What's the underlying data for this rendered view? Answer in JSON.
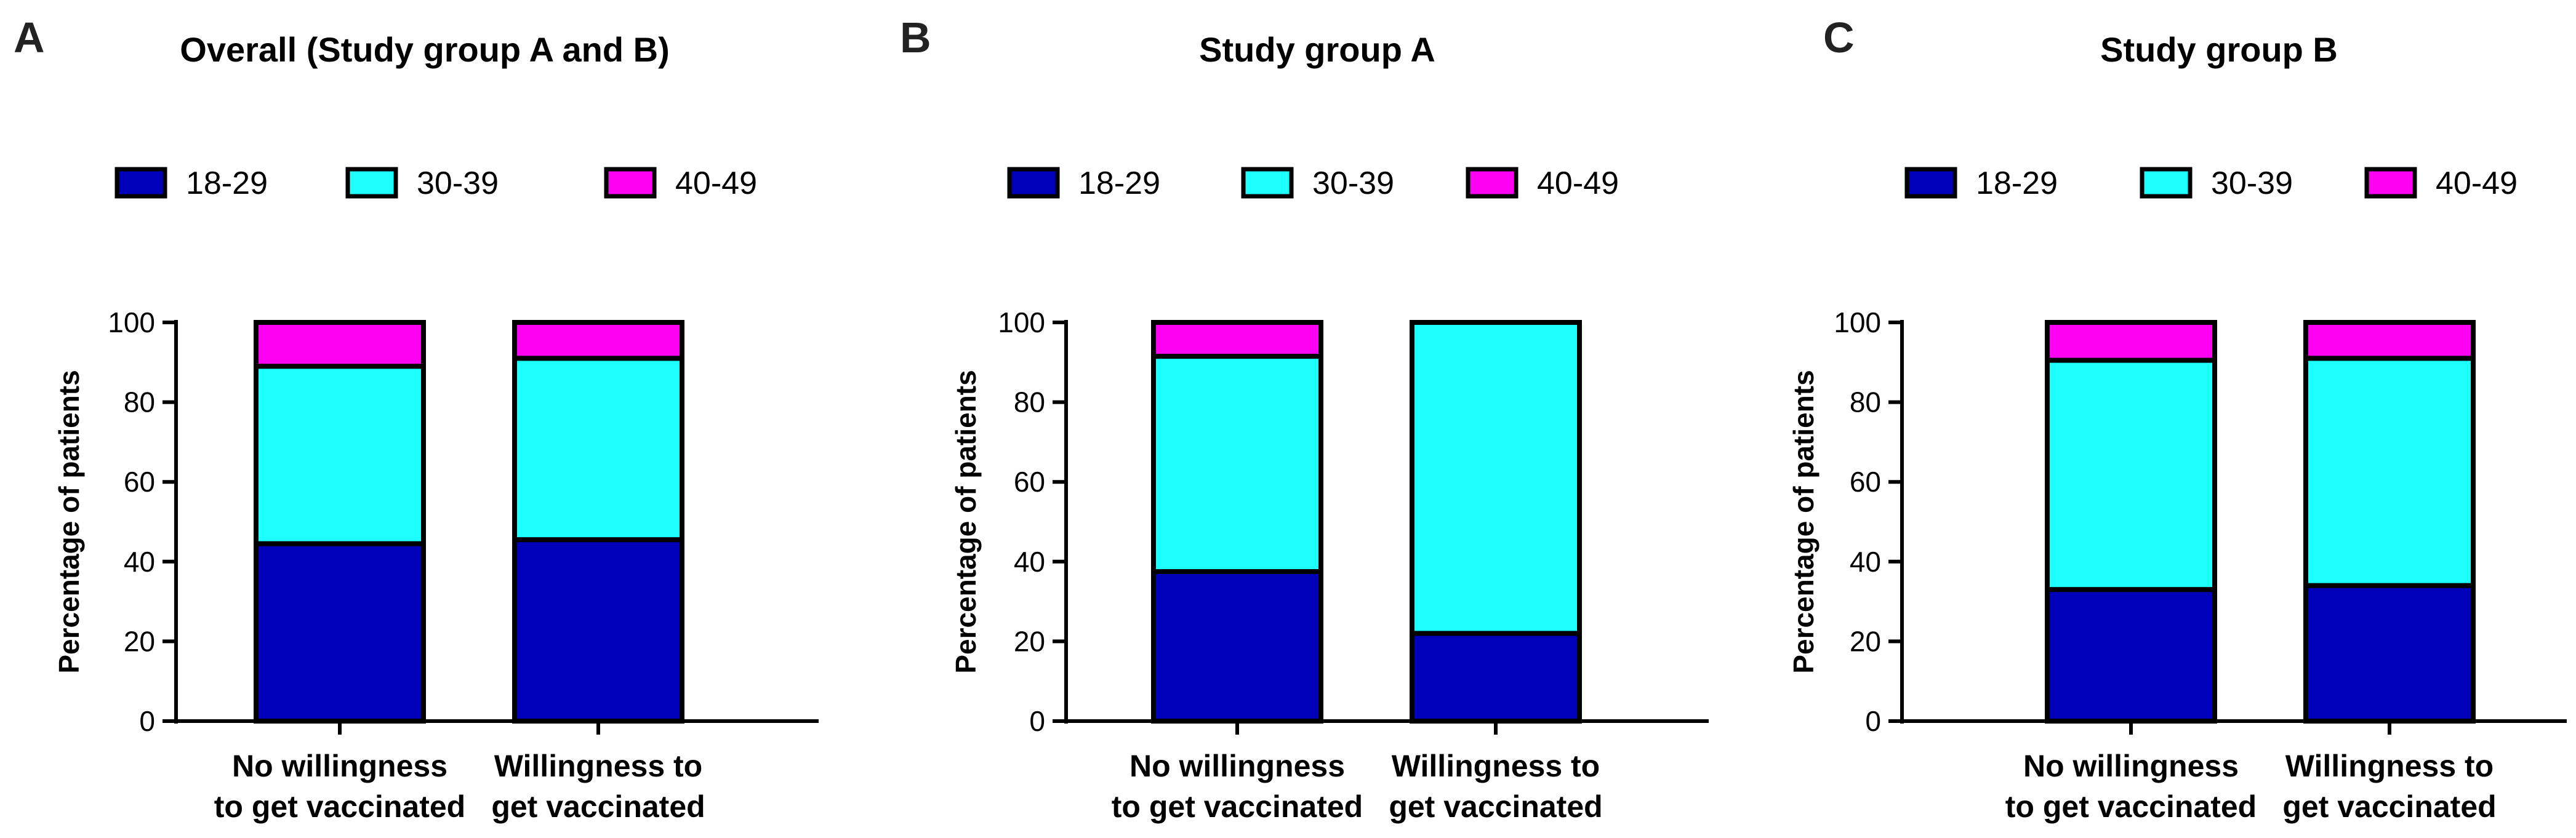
{
  "colors": {
    "18-29": "#0000BB",
    "30-39": "#1EFFFF",
    "40-49": "#FF00F2",
    "axis": "#000000"
  },
  "chart_data": [
    {
      "type": "bar",
      "stacked": true,
      "panel": "A",
      "title": "Overall (Study group A and B)",
      "categories": [
        "No willingness to get vaccinated",
        "Willingness to get vaccinated"
      ],
      "category_lines": [
        [
          "No willingness",
          "to get vaccinated"
        ],
        [
          "Willingness to",
          "get vaccinated"
        ]
      ],
      "xlabel": "",
      "ylabel": "Percentage of patients",
      "ylim": [
        0,
        100
      ],
      "yticks": [
        0,
        20,
        40,
        60,
        80,
        100
      ],
      "legend": [
        "18-29",
        "30-39",
        "40-49"
      ],
      "series": [
        {
          "name": "18-29",
          "values": [
            44.5,
            45.5
          ]
        },
        {
          "name": "30-39",
          "values": [
            44.5,
            45.5
          ]
        },
        {
          "name": "40-49",
          "values": [
            11,
            9
          ]
        }
      ]
    },
    {
      "type": "bar",
      "stacked": true,
      "panel": "B",
      "title": "Study group A",
      "categories": [
        "No willingness to get vaccinated",
        "Willingness to get vaccinated"
      ],
      "category_lines": [
        [
          "No willingness",
          "to get vaccinated"
        ],
        [
          "Willingness to",
          "get vaccinated"
        ]
      ],
      "xlabel": "",
      "ylabel": "Percentage of patients",
      "ylim": [
        0,
        100
      ],
      "yticks": [
        0,
        20,
        40,
        60,
        80,
        100
      ],
      "legend": [
        "18-29",
        "30-39",
        "40-49"
      ],
      "series": [
        {
          "name": "18-29",
          "values": [
            37.5,
            22
          ]
        },
        {
          "name": "30-39",
          "values": [
            54,
            78
          ]
        },
        {
          "name": "40-49",
          "values": [
            8.5,
            0
          ]
        }
      ]
    },
    {
      "type": "bar",
      "stacked": true,
      "panel": "C",
      "title": "Study group B",
      "categories": [
        "No willingness to get vaccinated",
        "Willingness to get vaccinated"
      ],
      "category_lines": [
        [
          "No willingness",
          "to get vaccinated"
        ],
        [
          "Willingness to",
          "get vaccinated"
        ]
      ],
      "xlabel": "",
      "ylabel": "Percentage of patients",
      "ylim": [
        0,
        100
      ],
      "yticks": [
        0,
        20,
        40,
        60,
        80,
        100
      ],
      "legend": [
        "18-29",
        "30-39",
        "40-49"
      ],
      "series": [
        {
          "name": "18-29",
          "values": [
            33,
            34
          ]
        },
        {
          "name": "30-39",
          "values": [
            57.5,
            57
          ]
        },
        {
          "name": "40-49",
          "values": [
            9.5,
            9
          ]
        }
      ]
    }
  ]
}
